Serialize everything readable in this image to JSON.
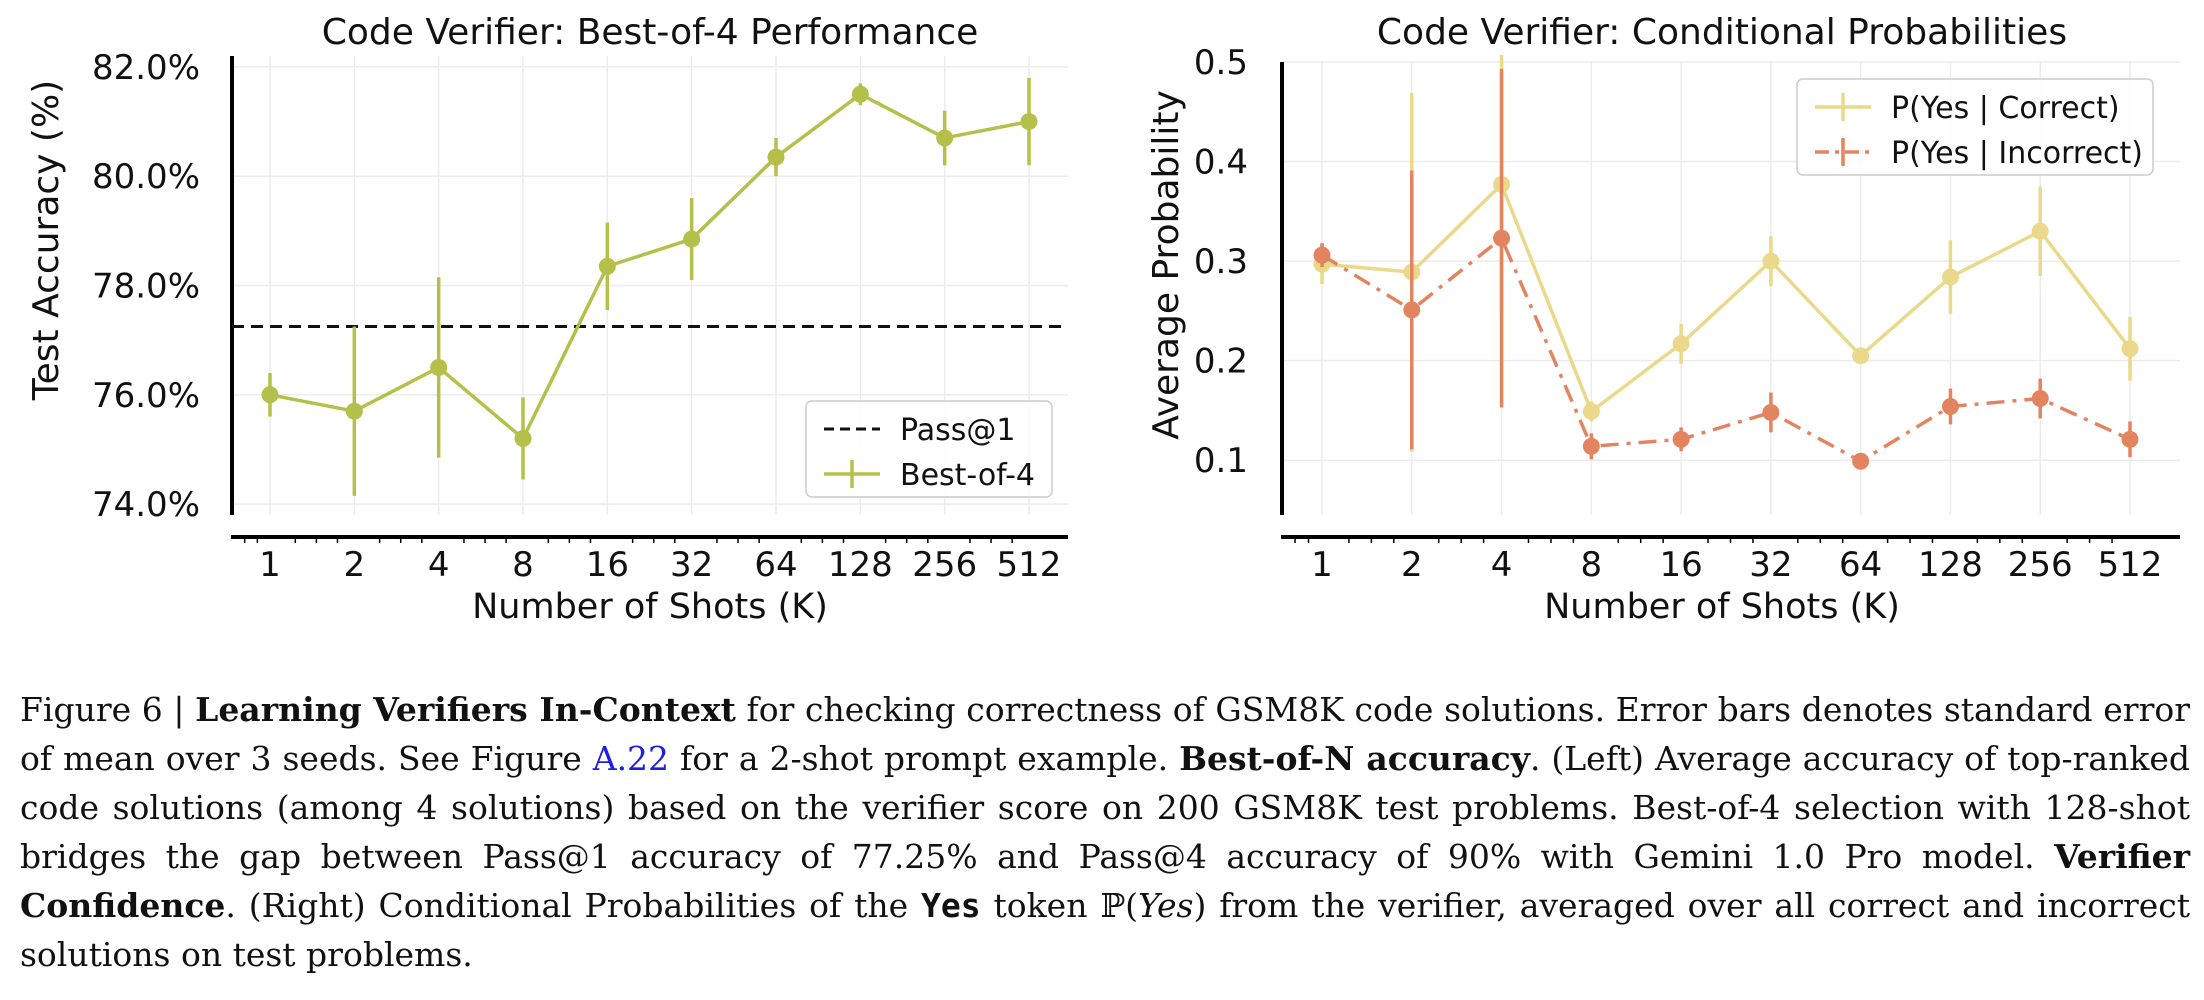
{
  "chart_data": [
    {
      "type": "line",
      "title": "Code Verifier: Best-of-4 Performance",
      "xlabel": "Number of Shots (K)",
      "ylabel": "Test Accuracy (%)",
      "categories": [
        "1",
        "2",
        "4",
        "8",
        "16",
        "32",
        "64",
        "128",
        "256",
        "512"
      ],
      "ylim": [
        73.8,
        82.2
      ],
      "yticks": [
        "74.0%",
        "76.0%",
        "78.0%",
        "80.0%",
        "82.0%"
      ],
      "ytick_values": [
        74,
        76,
        78,
        80,
        82
      ],
      "grid": true,
      "legend_position": "bottom-right",
      "series": [
        {
          "name": "Best-of-4",
          "color": "#b5c04a",
          "values": [
            76.0,
            75.7,
            76.5,
            75.2,
            78.35,
            78.85,
            80.35,
            81.5,
            80.7,
            81.0
          ],
          "error": [
            0.4,
            1.55,
            1.65,
            0.75,
            0.8,
            0.75,
            0.35,
            0.2,
            0.5,
            0.8
          ]
        }
      ],
      "reference_lines": [
        {
          "name": "Pass@1",
          "value": 77.25,
          "color": "#111111",
          "style": "dashed"
        }
      ]
    },
    {
      "type": "line",
      "title": "Code Verifier: Conditional Probabilities",
      "xlabel": "Number of Shots (K)",
      "ylabel": "Average Probability",
      "categories": [
        "1",
        "2",
        "4",
        "8",
        "16",
        "32",
        "64",
        "128",
        "256",
        "512"
      ],
      "ylim": [
        0.045,
        0.5
      ],
      "yticks": [
        "0.1",
        "0.2",
        "0.3",
        "0.4",
        "0.5"
      ],
      "ytick_values": [
        0.1,
        0.2,
        0.3,
        0.4,
        0.5
      ],
      "grid": true,
      "legend_position": "top-right",
      "series": [
        {
          "name": "P(Yes | Correct)",
          "color": "#ead98a",
          "style": "solid",
          "values": [
            0.297,
            0.289,
            0.377,
            0.149,
            0.217,
            0.3,
            0.205,
            0.284,
            0.33,
            0.212
          ],
          "error": [
            0.02,
            0.18,
            0.13,
            0.01,
            0.02,
            0.025,
            0.008,
            0.037,
            0.045,
            0.032
          ]
        },
        {
          "name": "P(Yes | Incorrect)",
          "color": "#e38461",
          "style": "dashdot",
          "values": [
            0.306,
            0.251,
            0.323,
            0.114,
            0.121,
            0.148,
            0.099,
            0.154,
            0.162,
            0.121
          ],
          "error": [
            0.012,
            0.14,
            0.17,
            0.013,
            0.012,
            0.02,
            0.006,
            0.018,
            0.02,
            0.018
          ]
        }
      ]
    }
  ],
  "caption": {
    "fig_label": "Figure 6 | ",
    "bold_title": "Learning Verifiers In-Context",
    "text1": "  for checking correctness of GSM8K code solutions. Error bars denotes standard error of mean over 3 seeds. See Figure ",
    "link": "A.22",
    "text2": " for a 2-shot prompt example. ",
    "bold2": "Best-of-N accuracy",
    "text3": ". (Left) Average accuracy of top-ranked code solutions (among 4 solutions) based on the verifier score on 200 GSM8K test problems. Best-of-4 selection with 128-shot bridges the gap between Pass@1 accuracy of 77.25% and Pass@4 accuracy of 90% with Gemini 1.0 Pro model. ",
    "bold3": "Verifier Confidence",
    "text4": ". (Right) Conditional Probabilities of the ",
    "mono": "Yes",
    "text5": " token ",
    "prob_symbol": "ℙ(",
    "prob_var": "Yes",
    "prob_close": ")",
    "text6": " from the verifier, averaged over all correct and incorrect solutions on test problems."
  }
}
